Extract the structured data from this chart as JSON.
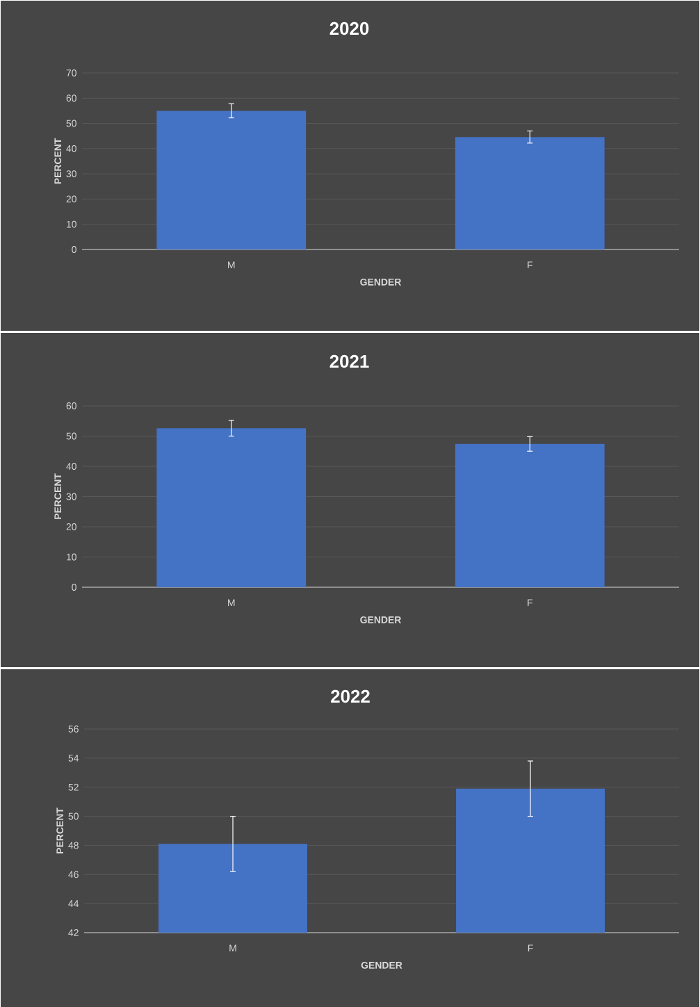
{
  "chart_data": [
    {
      "type": "bar",
      "title": "2020",
      "xlabel": "GENDER",
      "ylabel": "PERCENT",
      "categories": [
        "M",
        "F"
      ],
      "values": [
        55,
        44.6
      ],
      "errors": [
        2.8,
        2.4
      ],
      "color": "#4472c4",
      "ylim": [
        0,
        70
      ],
      "yticks": [
        0,
        10,
        20,
        30,
        40,
        50,
        60,
        70
      ],
      "grid": "y"
    },
    {
      "type": "bar",
      "title": "2021",
      "xlabel": "GENDER",
      "ylabel": "PERCENT",
      "categories": [
        "M",
        "F"
      ],
      "values": [
        52.6,
        47.4
      ],
      "errors": [
        2.6,
        2.4
      ],
      "color": "#4472c4",
      "ylim": [
        0,
        60
      ],
      "yticks": [
        0,
        10,
        20,
        30,
        40,
        50,
        60
      ],
      "grid": "y"
    },
    {
      "type": "bar",
      "title": "2022",
      "xlabel": "GENDER",
      "ylabel": "PERCENT",
      "categories": [
        "M",
        "F"
      ],
      "values": [
        48.1,
        51.9
      ],
      "errors": [
        1.9,
        1.9
      ],
      "color": "#4472c4",
      "ylim": [
        42,
        56
      ],
      "yticks": [
        42,
        44,
        46,
        48,
        50,
        52,
        54,
        56
      ],
      "grid": "y"
    }
  ]
}
